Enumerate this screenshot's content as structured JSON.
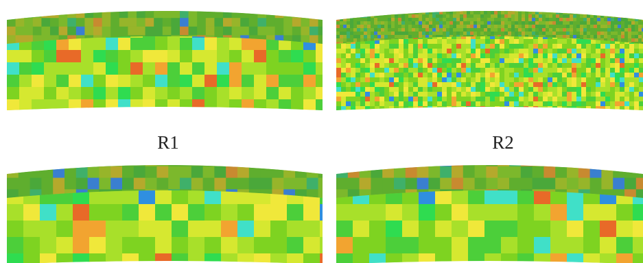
{
  "panels": [
    {
      "label": "R1"
    },
    {
      "label": "R2"
    }
  ]
}
